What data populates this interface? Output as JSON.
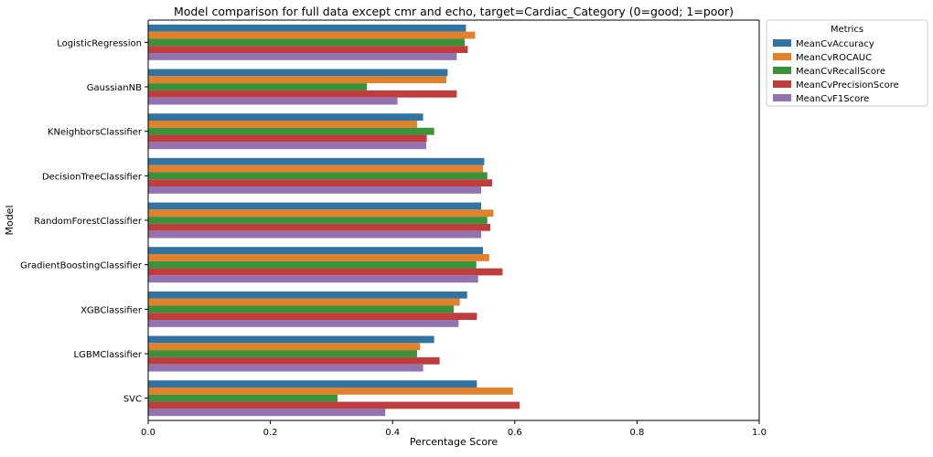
{
  "chart_data": {
    "type": "bar",
    "orientation": "horizontal",
    "title": "Model comparison for full data except cmr and echo, target=Cardiac_Category (0=good; 1=poor)",
    "xlabel": "Percentage Score",
    "ylabel": "Model",
    "xlim": [
      0,
      1.0
    ],
    "xticks": [
      "0.0",
      "0.2",
      "0.4",
      "0.6",
      "0.8",
      "1.0"
    ],
    "grid": false,
    "legend": {
      "title": "Metrics",
      "placement": "outside top-right"
    },
    "categories": [
      "LogisticRegression",
      "GaussianNB",
      "KNeighborsClassifier",
      "DecisionTreeClassifier",
      "RandomForestClassifier",
      "GradientBoostingClassifier",
      "XGBClassifier",
      "LGBMClassifier",
      "SVC"
    ],
    "series": [
      {
        "name": "MeanCvAccuracy",
        "color": "#3274a1",
        "values": [
          0.52,
          0.49,
          0.45,
          0.55,
          0.545,
          0.548,
          0.522,
          0.468,
          0.538
        ]
      },
      {
        "name": "MeanCvROCAUC",
        "color": "#e1812c",
        "values": [
          0.535,
          0.488,
          0.44,
          0.548,
          0.565,
          0.558,
          0.51,
          0.445,
          0.597
        ]
      },
      {
        "name": "MeanCvRecallScore",
        "color": "#3a923a",
        "values": [
          0.518,
          0.358,
          0.468,
          0.555,
          0.555,
          0.537,
          0.5,
          0.44,
          0.31
        ]
      },
      {
        "name": "MeanCvPrecisionScore",
        "color": "#c03d3e",
        "values": [
          0.523,
          0.505,
          0.456,
          0.563,
          0.56,
          0.58,
          0.538,
          0.477,
          0.608
        ]
      },
      {
        "name": "MeanCvF1Score",
        "color": "#9372b2",
        "values": [
          0.505,
          0.408,
          0.455,
          0.545,
          0.545,
          0.54,
          0.508,
          0.45,
          0.388
        ]
      }
    ]
  }
}
